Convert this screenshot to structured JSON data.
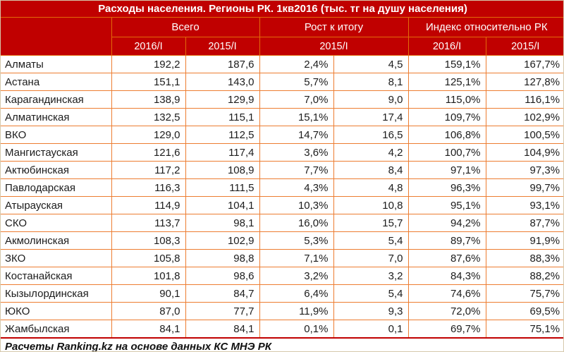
{
  "title": "Расходы населения. Регионы РК. 1кв2016 (тыс. тг на душу населения)",
  "colors": {
    "header_bg": "#C00000",
    "header_grid": "#E26B0A",
    "body_grid": "#ED7D31",
    "accent_red": "#C00000",
    "header_text": "#FFFFFF",
    "body_text": "#1C1C1C"
  },
  "chart_data": {
    "type": "table",
    "title": "Расходы населения. Регионы РК. 1кв2016 (тыс. тг на душу населения)",
    "column_groups": [
      {
        "label": "Всего",
        "colspan": 2
      },
      {
        "label": "Рост к итогу",
        "colspan": 2
      },
      {
        "label": "Индекс относительно РК",
        "colspan": 2
      }
    ],
    "sub_headers": [
      {
        "label": "2016/I",
        "colspan": 1
      },
      {
        "label": "2015/I",
        "colspan": 1
      },
      {
        "label": "2015/I",
        "colspan": 2
      },
      {
        "label": "2016/I",
        "colspan": 1
      },
      {
        "label": "2015/I",
        "colspan": 1
      }
    ],
    "rows": [
      [
        "Алматы",
        "192,2",
        "187,6",
        "2,4%",
        "4,5",
        "159,1%",
        "167,7%"
      ],
      [
        "Астана",
        "151,1",
        "143,0",
        "5,7%",
        "8,1",
        "125,1%",
        "127,8%"
      ],
      [
        "Карагандинская",
        "138,9",
        "129,9",
        "7,0%",
        "9,0",
        "115,0%",
        "116,1%"
      ],
      [
        "Алматинская",
        "132,5",
        "115,1",
        "15,1%",
        "17,4",
        "109,7%",
        "102,9%"
      ],
      [
        "ВКО",
        "129,0",
        "112,5",
        "14,7%",
        "16,5",
        "106,8%",
        "100,5%"
      ],
      [
        "Мангистауская",
        "121,6",
        "117,4",
        "3,6%",
        "4,2",
        "100,7%",
        "104,9%"
      ],
      [
        "Актюбинская",
        "117,2",
        "108,9",
        "7,7%",
        "8,4",
        "97,1%",
        "97,3%"
      ],
      [
        "Павлодарская",
        "116,3",
        "111,5",
        "4,3%",
        "4,8",
        "96,3%",
        "99,7%"
      ],
      [
        "Атырауская",
        "114,9",
        "104,1",
        "10,3%",
        "10,8",
        "95,1%",
        "93,1%"
      ],
      [
        "СКО",
        "113,7",
        "98,1",
        "16,0%",
        "15,7",
        "94,2%",
        "87,7%"
      ],
      [
        "Акмолинская",
        "108,3",
        "102,9",
        "5,3%",
        "5,4",
        "89,7%",
        "91,9%"
      ],
      [
        "ЗКО",
        "105,8",
        "98,8",
        "7,1%",
        "7,0",
        "87,6%",
        "88,3%"
      ],
      [
        "Костанайская",
        "101,8",
        "98,6",
        "3,2%",
        "3,2",
        "84,3%",
        "88,2%"
      ],
      [
        "Кызылординская",
        "90,1",
        "84,7",
        "6,4%",
        "5,4",
        "74,6%",
        "75,7%"
      ],
      [
        "ЮКО",
        "87,0",
        "77,7",
        "11,9%",
        "9,3",
        "72,0%",
        "69,5%"
      ],
      [
        "Жамбылская",
        "84,1",
        "84,1",
        "0,1%",
        "0,1",
        "69,7%",
        "75,1%"
      ]
    ],
    "source_note": "Расчеты Ranking.kz на основе данных КС МНЭ РК"
  }
}
